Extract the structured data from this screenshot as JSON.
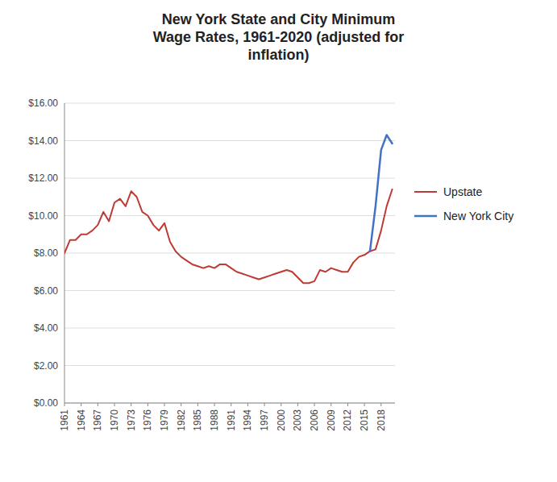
{
  "chart_data": {
    "type": "line",
    "title": "New York State and City Minimum\nWage Rates, 1961-2020 (adjusted for\ninflation)",
    "series": [
      {
        "name": "Upstate",
        "color": "#BE3A34",
        "x": [
          1961,
          1962,
          1963,
          1964,
          1965,
          1966,
          1967,
          1968,
          1969,
          1970,
          1971,
          1972,
          1973,
          1974,
          1975,
          1976,
          1977,
          1978,
          1979,
          1980,
          1981,
          1982,
          1983,
          1984,
          1985,
          1986,
          1987,
          1988,
          1989,
          1990,
          1991,
          1992,
          1993,
          1994,
          1995,
          1996,
          1997,
          1998,
          1999,
          2000,
          2001,
          2002,
          2003,
          2004,
          2005,
          2006,
          2007,
          2008,
          2009,
          2010,
          2011,
          2012,
          2013,
          2014,
          2015,
          2016,
          2017,
          2018,
          2019,
          2020
        ],
        "values": [
          8.0,
          8.7,
          8.7,
          9.0,
          9.0,
          9.2,
          9.5,
          10.2,
          9.7,
          10.7,
          10.9,
          10.5,
          11.3,
          11.0,
          10.2,
          10.0,
          9.5,
          9.2,
          9.6,
          8.6,
          8.1,
          7.8,
          7.6,
          7.4,
          7.3,
          7.2,
          7.3,
          7.2,
          7.4,
          7.4,
          7.2,
          7.0,
          6.9,
          6.8,
          6.7,
          6.6,
          6.7,
          6.8,
          6.9,
          7.0,
          7.1,
          7.0,
          6.7,
          6.4,
          6.4,
          6.5,
          7.1,
          7.0,
          7.2,
          7.1,
          7.0,
          7.0,
          7.5,
          7.8,
          7.9,
          8.1,
          8.2,
          9.2,
          10.5,
          11.4
        ]
      },
      {
        "name": "New York City",
        "color": "#4472C4",
        "x": [
          2016,
          2017,
          2018,
          2019,
          2020
        ],
        "values": [
          8.1,
          10.5,
          13.5,
          14.3,
          13.85
        ]
      }
    ],
    "xlim": [
      1961,
      2020.5
    ],
    "xticks": [
      1961,
      1964,
      1967,
      1970,
      1973,
      1976,
      1979,
      1982,
      1985,
      1988,
      1991,
      1994,
      1997,
      2000,
      2003,
      2006,
      2009,
      2012,
      2015,
      2018
    ],
    "ylim": [
      0,
      16
    ],
    "yticks": [
      {
        "value": 0,
        "label": "$0.00"
      },
      {
        "value": 2,
        "label": "$2.00"
      },
      {
        "value": 4,
        "label": "$4.00"
      },
      {
        "value": 6,
        "label": "$6.00"
      },
      {
        "value": 8,
        "label": "$8.00"
      },
      {
        "value": 10,
        "label": "$10.00"
      },
      {
        "value": 12,
        "label": "$12.00"
      },
      {
        "value": 14,
        "label": "$14.00"
      },
      {
        "value": 16,
        "label": "$16.00"
      }
    ],
    "grid": true,
    "legend": "right"
  }
}
